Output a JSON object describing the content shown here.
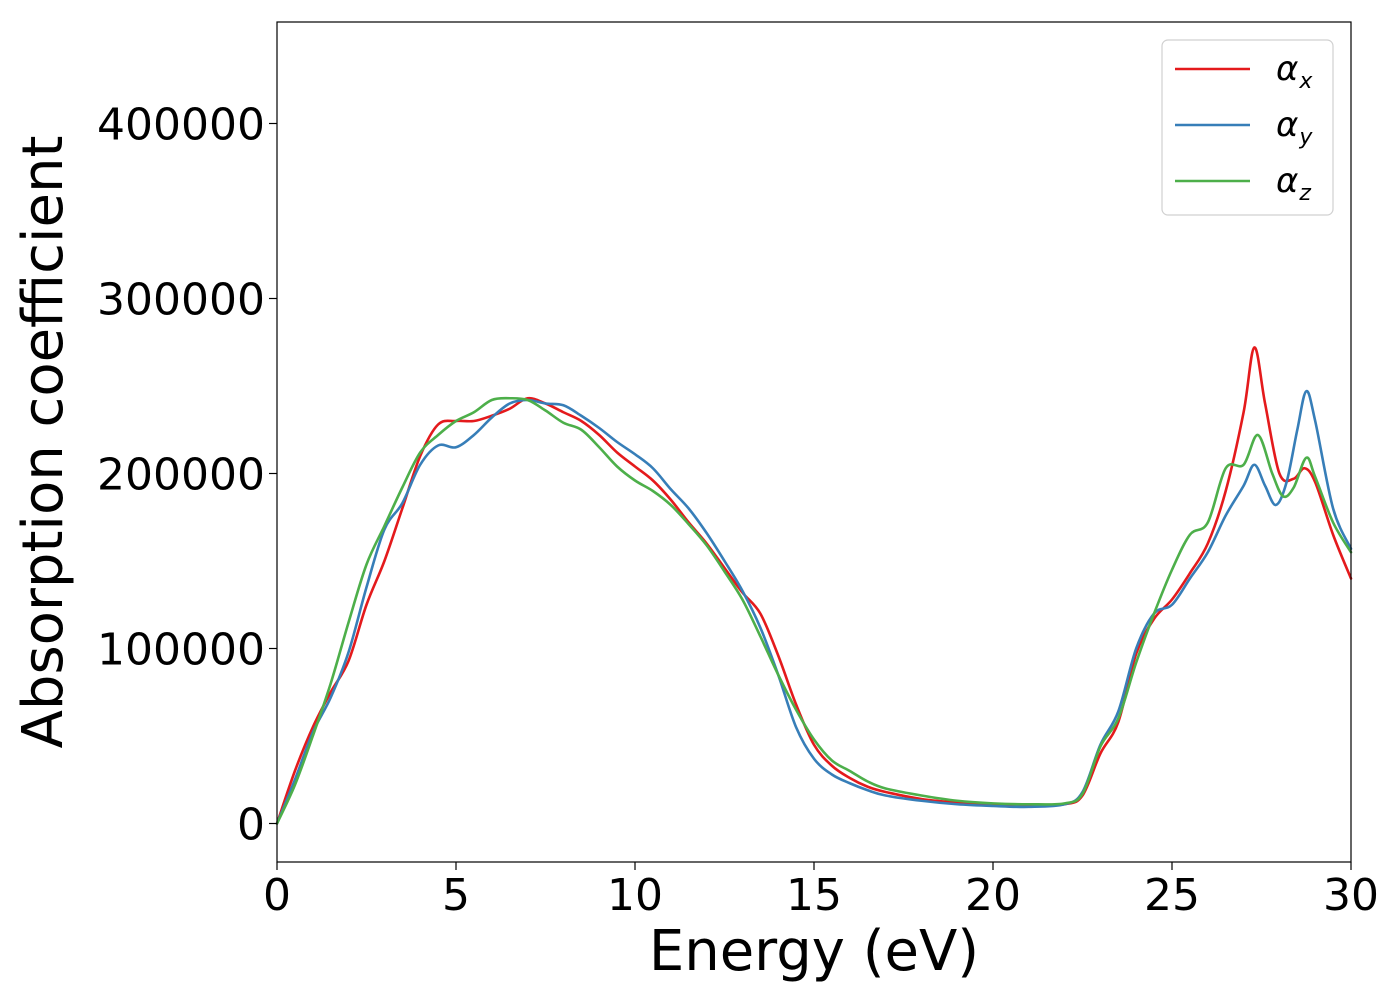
{
  "chart_data": {
    "type": "line",
    "title": "",
    "xlabel": "Energy (eV)",
    "ylabel": "Absorption coefficient",
    "xlim": [
      0,
      30
    ],
    "ylim": [
      -22000,
      458000
    ],
    "xticks": [
      0,
      5,
      10,
      15,
      20,
      25,
      30
    ],
    "yticks": [
      0,
      100000,
      200000,
      300000,
      400000
    ],
    "grid": false,
    "legend_position": "top-right",
    "series": [
      {
        "name": "α",
        "subscript": "x",
        "color": "#e41a1c",
        "points": [
          [
            0,
            0
          ],
          [
            0.5,
            30000
          ],
          [
            1,
            55000
          ],
          [
            1.5,
            75000
          ],
          [
            2,
            93000
          ],
          [
            2.5,
            125000
          ],
          [
            3,
            150000
          ],
          [
            3.5,
            180000
          ],
          [
            4,
            210000
          ],
          [
            4.5,
            228000
          ],
          [
            5,
            230000
          ],
          [
            5.5,
            230000
          ],
          [
            6,
            233000
          ],
          [
            6.5,
            237000
          ],
          [
            7,
            243000
          ],
          [
            7.5,
            240000
          ],
          [
            8,
            235000
          ],
          [
            8.5,
            230000
          ],
          [
            9,
            222000
          ],
          [
            9.5,
            212000
          ],
          [
            10,
            204000
          ],
          [
            10.5,
            196000
          ],
          [
            11,
            185000
          ],
          [
            11.5,
            172000
          ],
          [
            12,
            160000
          ],
          [
            12.5,
            146000
          ],
          [
            13,
            132000
          ],
          [
            13.5,
            120000
          ],
          [
            14,
            96000
          ],
          [
            14.5,
            68000
          ],
          [
            15,
            45000
          ],
          [
            15.5,
            33000
          ],
          [
            16,
            26000
          ],
          [
            16.5,
            21000
          ],
          [
            17,
            18000
          ],
          [
            18,
            14000
          ],
          [
            19,
            12000
          ],
          [
            20,
            11000
          ],
          [
            21,
            10000
          ],
          [
            22,
            11000
          ],
          [
            22.5,
            16000
          ],
          [
            23,
            40000
          ],
          [
            23.5,
            58000
          ],
          [
            24,
            97000
          ],
          [
            24.5,
            117000
          ],
          [
            25,
            128000
          ],
          [
            25.5,
            143000
          ],
          [
            26,
            160000
          ],
          [
            26.5,
            190000
          ],
          [
            27,
            235000
          ],
          [
            27.3,
            272000
          ],
          [
            27.6,
            240000
          ],
          [
            28,
            200000
          ],
          [
            28.4,
            197000
          ],
          [
            28.7,
            203000
          ],
          [
            29,
            195000
          ],
          [
            29.5,
            165000
          ],
          [
            30,
            140000
          ]
        ]
      },
      {
        "name": "α",
        "subscript": "y",
        "color": "#377eb8",
        "points": [
          [
            0,
            0
          ],
          [
            0.5,
            25000
          ],
          [
            1,
            52000
          ],
          [
            1.5,
            72000
          ],
          [
            2,
            98000
          ],
          [
            2.5,
            135000
          ],
          [
            3,
            168000
          ],
          [
            3.5,
            183000
          ],
          [
            4,
            205000
          ],
          [
            4.5,
            216000
          ],
          [
            5,
            215000
          ],
          [
            5.5,
            222000
          ],
          [
            6,
            232000
          ],
          [
            6.5,
            240000
          ],
          [
            7,
            242000
          ],
          [
            7.5,
            240000
          ],
          [
            8,
            239000
          ],
          [
            8.5,
            233000
          ],
          [
            9,
            226000
          ],
          [
            9.5,
            218000
          ],
          [
            10,
            211000
          ],
          [
            10.5,
            203000
          ],
          [
            11,
            191000
          ],
          [
            11.5,
            180000
          ],
          [
            12,
            166000
          ],
          [
            12.5,
            150000
          ],
          [
            13,
            133000
          ],
          [
            13.5,
            112000
          ],
          [
            14,
            85000
          ],
          [
            14.5,
            55000
          ],
          [
            15,
            37000
          ],
          [
            15.5,
            28000
          ],
          [
            16,
            23000
          ],
          [
            16.5,
            19000
          ],
          [
            17,
            16000
          ],
          [
            18,
            13000
          ],
          [
            19,
            11000
          ],
          [
            20,
            10000
          ],
          [
            21,
            9500
          ],
          [
            22,
            11000
          ],
          [
            22.5,
            18000
          ],
          [
            23,
            45000
          ],
          [
            23.5,
            64000
          ],
          [
            24,
            100000
          ],
          [
            24.5,
            120000
          ],
          [
            25,
            125000
          ],
          [
            25.5,
            140000
          ],
          [
            26,
            155000
          ],
          [
            26.5,
            176000
          ],
          [
            27,
            193000
          ],
          [
            27.3,
            205000
          ],
          [
            27.6,
            193000
          ],
          [
            27.9,
            182000
          ],
          [
            28.2,
            195000
          ],
          [
            28.5,
            225000
          ],
          [
            28.75,
            247000
          ],
          [
            29,
            230000
          ],
          [
            29.5,
            180000
          ],
          [
            30,
            157000
          ]
        ]
      },
      {
        "name": "α",
        "subscript": "z",
        "color": "#4daf4a",
        "points": [
          [
            0,
            0
          ],
          [
            0.5,
            22000
          ],
          [
            1,
            50000
          ],
          [
            1.5,
            80000
          ],
          [
            2,
            115000
          ],
          [
            2.5,
            148000
          ],
          [
            3,
            170000
          ],
          [
            3.5,
            192000
          ],
          [
            4,
            212000
          ],
          [
            4.5,
            222000
          ],
          [
            5,
            230000
          ],
          [
            5.5,
            235000
          ],
          [
            6,
            242000
          ],
          [
            6.5,
            243000
          ],
          [
            7,
            242000
          ],
          [
            7.5,
            236000
          ],
          [
            8,
            229000
          ],
          [
            8.5,
            225000
          ],
          [
            9,
            215000
          ],
          [
            9.5,
            204000
          ],
          [
            10,
            196000
          ],
          [
            10.5,
            190000
          ],
          [
            11,
            182000
          ],
          [
            11.5,
            171000
          ],
          [
            12,
            159000
          ],
          [
            12.5,
            144000
          ],
          [
            13,
            128000
          ],
          [
            13.5,
            107000
          ],
          [
            14,
            85000
          ],
          [
            14.5,
            65000
          ],
          [
            15,
            48000
          ],
          [
            15.5,
            36000
          ],
          [
            16,
            30000
          ],
          [
            16.5,
            24000
          ],
          [
            17,
            20000
          ],
          [
            18,
            16000
          ],
          [
            19,
            13000
          ],
          [
            20,
            11500
          ],
          [
            21,
            11000
          ],
          [
            22,
            11500
          ],
          [
            22.5,
            17000
          ],
          [
            23,
            44000
          ],
          [
            23.5,
            60000
          ],
          [
            24,
            92000
          ],
          [
            24.5,
            120000
          ],
          [
            25,
            145000
          ],
          [
            25.5,
            165000
          ],
          [
            26,
            172000
          ],
          [
            26.5,
            203000
          ],
          [
            27,
            205000
          ],
          [
            27.4,
            222000
          ],
          [
            27.8,
            200000
          ],
          [
            28.1,
            187000
          ],
          [
            28.4,
            192000
          ],
          [
            28.75,
            209000
          ],
          [
            29,
            198000
          ],
          [
            29.5,
            172000
          ],
          [
            30,
            155000
          ]
        ]
      }
    ]
  }
}
